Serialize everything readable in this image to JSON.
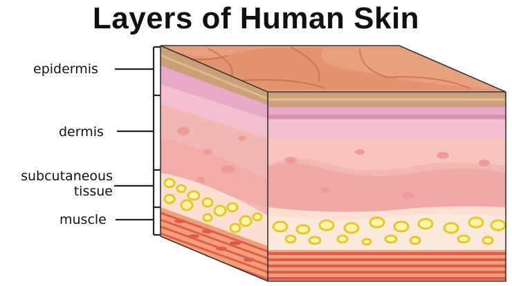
{
  "title": "Layers of Human Skin",
  "labels": {
    "epidermis": "epidermis",
    "dermis": "dermis",
    "subcutaneous_line1": "subcutaneous",
    "subcutaneous_line2": "tissue",
    "muscle": "muscle"
  },
  "colors": {
    "top_surface": "#df8b67",
    "top_plate": "#e9a07e",
    "epidermis_band": "#c9a078",
    "dermis_pink": "#e7b3c4",
    "dermis_body": "#f4b8b4",
    "fat_yellow": "#f3e25a",
    "muscle_red": "#e05a4f",
    "outline": "#333333"
  }
}
